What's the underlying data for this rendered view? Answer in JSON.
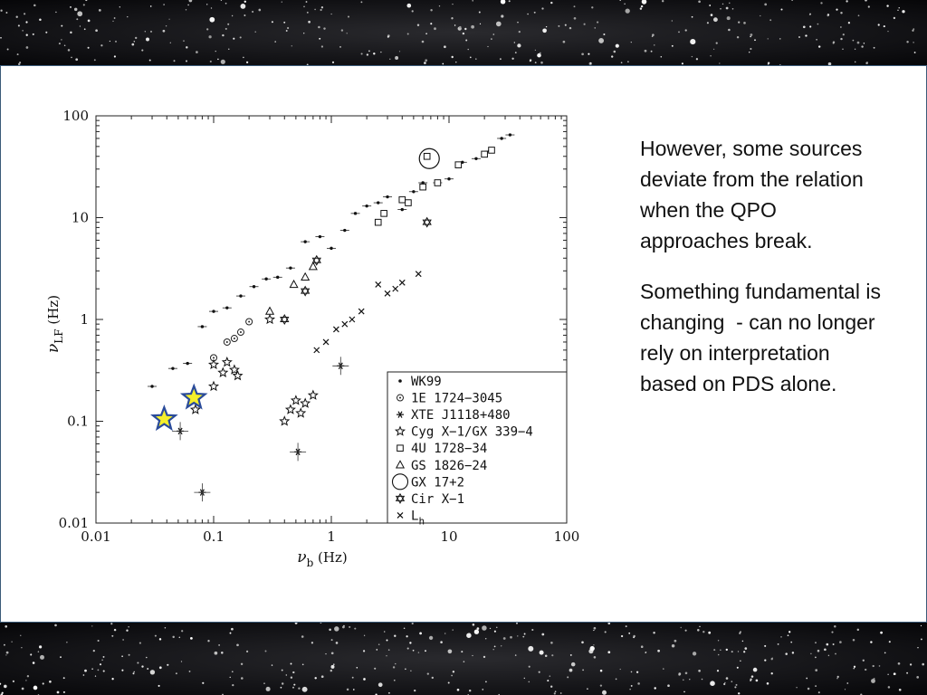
{
  "slide": {
    "paragraphs": [
      "However, some sources deviate from the relation when the QPO approaches break.",
      "Something fundamental is changing  - can no longer rely on interpretation based on PDS alone."
    ]
  },
  "chart_data": {
    "type": "scatter",
    "xscale": "log",
    "yscale": "log",
    "xlim": [
      0.01,
      100
    ],
    "ylim": [
      0.01,
      100
    ],
    "xlabel": "ν_b (Hz)",
    "ylabel": "ν_LF (Hz)",
    "x_ticks": [
      "0.01",
      "0.1",
      "1",
      "10",
      "100"
    ],
    "y_ticks": [
      "0.01",
      "0.1",
      "1",
      "10",
      "100"
    ],
    "legend_position": "bottom-right",
    "legend": [
      {
        "symbol": "dot",
        "label": "WK99"
      },
      {
        "symbol": "circle-dot",
        "label": "1E 1724−3045"
      },
      {
        "symbol": "asterisk",
        "label": "XTE J1118+480"
      },
      {
        "symbol": "open-star",
        "label": "Cyg X−1/GX 339−4"
      },
      {
        "symbol": "open-square",
        "label": "4U 1728−34"
      },
      {
        "symbol": "open-triangle",
        "label": "GS 1826−24"
      },
      {
        "symbol": "big-circle",
        "label": "GX 17+2"
      },
      {
        "symbol": "star-of-david",
        "label": "Cir X−1"
      },
      {
        "symbol": "cross",
        "label": "L_h"
      }
    ],
    "series": [
      {
        "name": "WK99",
        "symbol": "dot",
        "points": [
          [
            0.03,
            0.22
          ],
          [
            0.045,
            0.33
          ],
          [
            0.06,
            0.37
          ],
          [
            0.08,
            0.85
          ],
          [
            0.1,
            1.2
          ],
          [
            0.13,
            1.3
          ],
          [
            0.17,
            1.7
          ],
          [
            0.22,
            2.1
          ],
          [
            0.28,
            2.5
          ],
          [
            0.35,
            2.6
          ],
          [
            0.45,
            3.2
          ],
          [
            0.6,
            5.8
          ],
          [
            0.8,
            6.5
          ],
          [
            1.0,
            5.0
          ],
          [
            1.3,
            7.5
          ],
          [
            1.6,
            11
          ],
          [
            2.0,
            13
          ],
          [
            2.5,
            14
          ],
          [
            3.0,
            16
          ],
          [
            4.0,
            12
          ],
          [
            5.0,
            18
          ],
          [
            6.0,
            22
          ],
          [
            8.0,
            22
          ],
          [
            10.0,
            24
          ],
          [
            13.0,
            35
          ],
          [
            17.0,
            38
          ],
          [
            22.0,
            45
          ],
          [
            28.0,
            60
          ],
          [
            33.0,
            65
          ]
        ]
      },
      {
        "name": "1E 1724−3045",
        "symbol": "circle-dot",
        "points": [
          [
            0.1,
            0.42
          ],
          [
            0.13,
            0.6
          ],
          [
            0.15,
            0.65
          ],
          [
            0.17,
            0.75
          ],
          [
            0.2,
            0.95
          ]
        ]
      },
      {
        "name": "XTE J1118+480",
        "symbol": "asterisk",
        "points": [
          [
            0.052,
            0.08
          ],
          [
            0.08,
            0.02
          ],
          [
            0.52,
            0.05
          ],
          [
            1.2,
            0.35
          ]
        ]
      },
      {
        "name": "Cyg X−1/GX 339−4",
        "symbol": "open-star",
        "points": [
          [
            0.07,
            0.13
          ],
          [
            0.1,
            0.22
          ],
          [
            0.1,
            0.36
          ],
          [
            0.12,
            0.3
          ],
          [
            0.13,
            0.38
          ],
          [
            0.15,
            0.32
          ],
          [
            0.16,
            0.28
          ],
          [
            0.3,
            1.0
          ],
          [
            0.4,
            0.1
          ],
          [
            0.45,
            0.13
          ],
          [
            0.5,
            0.16
          ],
          [
            0.55,
            0.12
          ],
          [
            0.6,
            0.15
          ],
          [
            0.7,
            0.18
          ]
        ]
      },
      {
        "name": "4U 1728−34",
        "symbol": "open-square",
        "points": [
          [
            2.5,
            9.0
          ],
          [
            2.8,
            11
          ],
          [
            4.0,
            15
          ],
          [
            4.5,
            14
          ],
          [
            6.0,
            20
          ],
          [
            6.5,
            40
          ],
          [
            8.0,
            22
          ],
          [
            12.0,
            33
          ],
          [
            20.0,
            42
          ],
          [
            23.0,
            46
          ]
        ]
      },
      {
        "name": "GS 1826−24",
        "symbol": "open-triangle",
        "points": [
          [
            0.3,
            1.2
          ],
          [
            0.48,
            2.2
          ],
          [
            0.6,
            2.6
          ],
          [
            0.7,
            3.3
          ]
        ]
      },
      {
        "name": "GX 17+2",
        "symbol": "big-circle",
        "points": [
          [
            6.8,
            38
          ]
        ]
      },
      {
        "name": "Cir X−1",
        "symbol": "star-of-david",
        "points": [
          [
            0.4,
            1.0
          ],
          [
            0.6,
            1.9
          ],
          [
            0.75,
            3.8
          ],
          [
            6.5,
            9.0
          ]
        ]
      },
      {
        "name": "L_h",
        "symbol": "cross",
        "points": [
          [
            0.75,
            0.5
          ],
          [
            0.9,
            0.6
          ],
          [
            1.1,
            0.8
          ],
          [
            1.3,
            0.9
          ],
          [
            1.5,
            1.0
          ],
          [
            1.8,
            1.2
          ],
          [
            2.5,
            2.2
          ],
          [
            3.0,
            1.8
          ],
          [
            3.5,
            2.0
          ],
          [
            4.0,
            2.3
          ],
          [
            5.5,
            2.8
          ]
        ]
      }
    ],
    "highlight_stars": [
      [
        0.038,
        0.105
      ],
      [
        0.068,
        0.17
      ]
    ],
    "highlight_colors": {
      "fill": "#f5ef2a",
      "stroke": "#2a4b9a"
    }
  }
}
